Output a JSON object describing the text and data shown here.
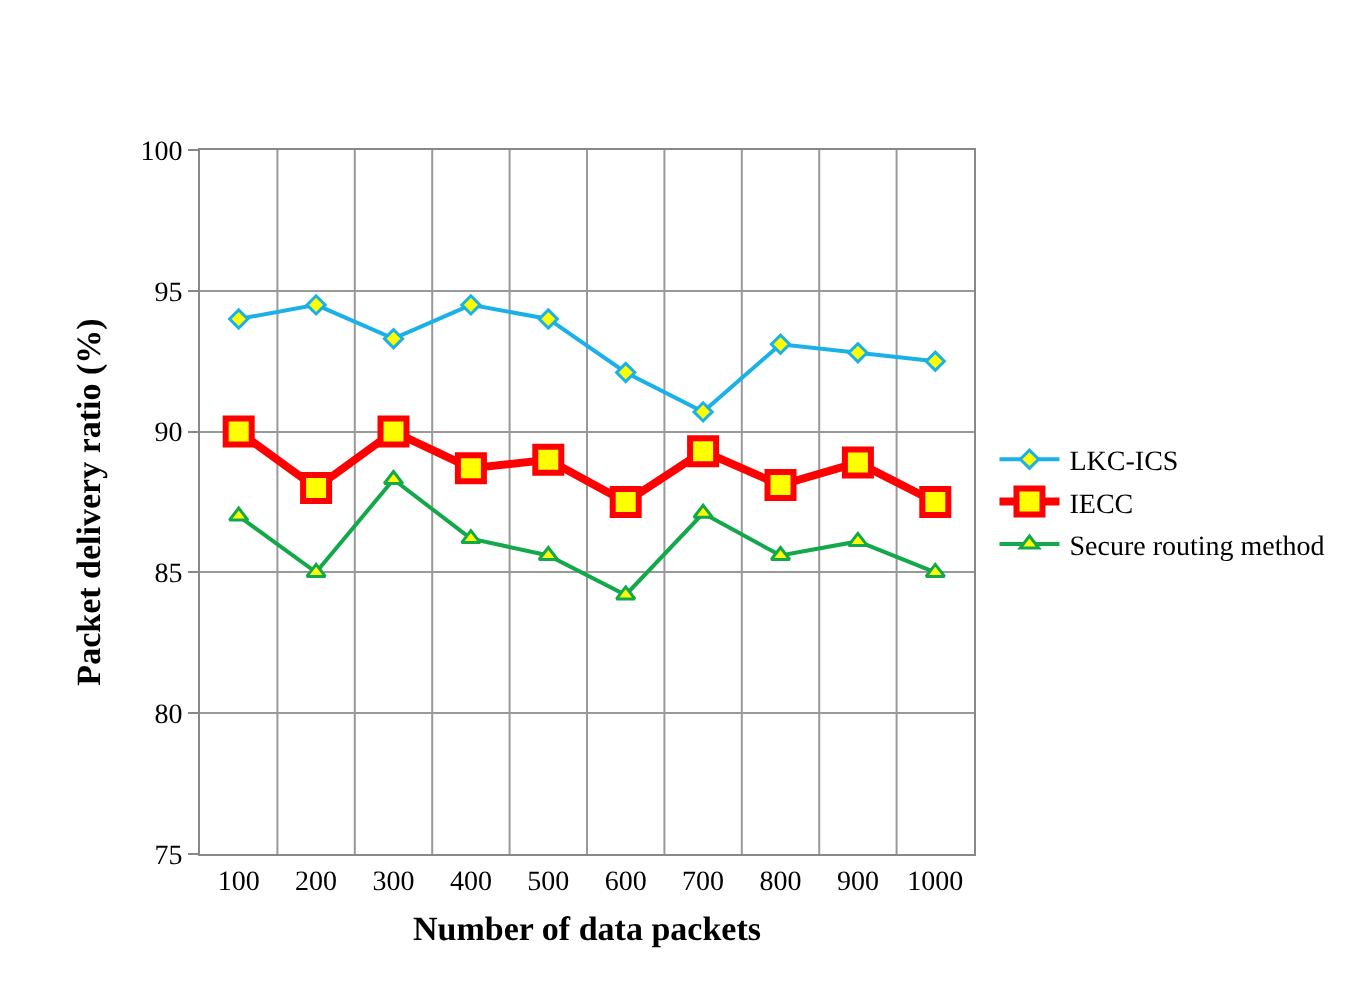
{
  "chart_data": {
    "type": "line",
    "xlabel": "Number of data packets",
    "ylabel": "Packet delivery ratio (%)",
    "categories": [
      "100",
      "200",
      "300",
      "400",
      "500",
      "600",
      "700",
      "800",
      "900",
      "1000"
    ],
    "series": [
      {
        "name": "LKC-ICS",
        "color": "#1ab0e8",
        "marker": "diamond",
        "values": [
          94.0,
          94.5,
          93.3,
          94.5,
          94.0,
          92.1,
          90.7,
          93.1,
          92.8,
          92.5
        ]
      },
      {
        "name": "IECC",
        "color": "#ff0000",
        "marker": "square",
        "values": [
          90.0,
          88.0,
          90.0,
          88.7,
          89.0,
          87.5,
          89.3,
          88.1,
          88.9,
          87.5
        ]
      },
      {
        "name": "Secure routing method",
        "color": "#13a84a",
        "marker": "triangle",
        "values": [
          87.0,
          85.0,
          88.3,
          86.2,
          85.6,
          84.2,
          87.1,
          85.6,
          86.1,
          85.0
        ]
      }
    ],
    "ylim": [
      75,
      100
    ],
    "yticks": [
      75,
      80,
      85,
      90,
      95,
      100
    ],
    "grid": true,
    "legend": "right"
  }
}
